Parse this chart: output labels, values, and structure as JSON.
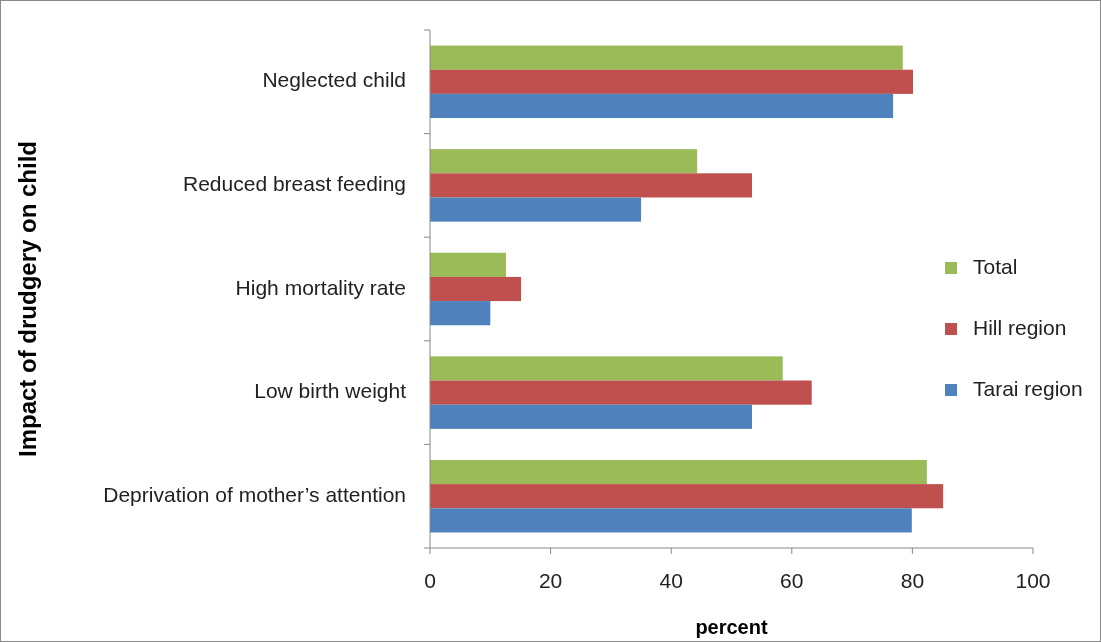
{
  "chart_data": {
    "type": "bar",
    "orientation": "horizontal",
    "xlabel": "percent",
    "ylabel": "Impact of drudgery on child",
    "categories": [
      "Neglected child",
      "Reduced breast feeding",
      "High mortality rate",
      "Low birth weight",
      "Deprivation of mother’s attention"
    ],
    "series": [
      {
        "name": "Total",
        "color": "#9bbb59",
        "values": [
          78.4,
          44.3,
          12.6,
          58.5,
          82.4
        ]
      },
      {
        "name": "Hill region",
        "color": "#c0504d",
        "values": [
          80.1,
          53.4,
          15.1,
          63.3,
          85.1
        ]
      },
      {
        "name": "Tarai region",
        "color": "#4f81bd",
        "values": [
          76.8,
          35.0,
          10.0,
          53.4,
          79.9
        ]
      }
    ],
    "xlim": [
      0,
      100
    ],
    "xticks": [
      0,
      20,
      40,
      60,
      80,
      100
    ],
    "grid": false,
    "legend": "right"
  }
}
